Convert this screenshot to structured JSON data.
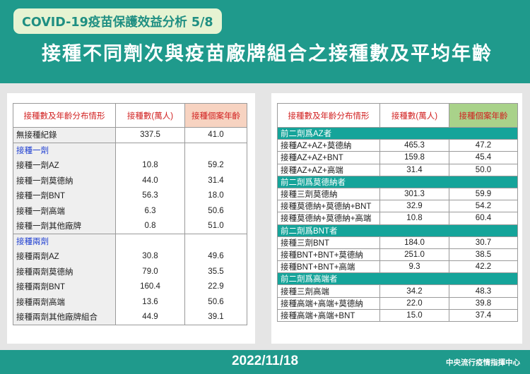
{
  "header": {
    "subtitle": "COVID-19疫苗保護效益分析 5/8",
    "title": "接種不同劑次與疫苗廠牌組合之接種數及平均年齡"
  },
  "left_table": {
    "headers": [
      "接種數及年齡分布情形",
      "接種數(萬人)",
      "接種個案年齡"
    ],
    "none_row": {
      "label": "無接種紀錄",
      "count": "337.5",
      "age": "41.0"
    },
    "section1": {
      "title": "接種一劑",
      "rows": [
        {
          "label": "接種一劑AZ",
          "count": "10.8",
          "age": "59.2"
        },
        {
          "label": "接種一劑莫德納",
          "count": "44.0",
          "age": "31.4"
        },
        {
          "label": "接種一劑BNT",
          "count": "56.3",
          "age": "18.0"
        },
        {
          "label": "接種一劑高端",
          "count": "6.3",
          "age": "50.6"
        },
        {
          "label": "接種一劑其他廠牌",
          "count": "0.8",
          "age": "51.0"
        }
      ]
    },
    "section2": {
      "title": "接種兩劑",
      "rows": [
        {
          "label": "接種兩劑AZ",
          "count": "30.8",
          "age": "49.6"
        },
        {
          "label": "接種兩劑莫德納",
          "count": "79.0",
          "age": "35.5"
        },
        {
          "label": "接種兩劑BNT",
          "count": "160.4",
          "age": "22.9"
        },
        {
          "label": "接種兩劑高端",
          "count": "13.6",
          "age": "50.6"
        },
        {
          "label": "接種兩劑其他廠牌組合",
          "count": "44.9",
          "age": "39.1"
        }
      ]
    }
  },
  "right_table": {
    "headers": [
      "接種數及年齡分布情形",
      "接種數(萬人)",
      "接種個案年齡"
    ],
    "groups": [
      {
        "title": "前二劑爲AZ者",
        "rows": [
          {
            "label": "接種AZ+AZ+莫德納",
            "count": "465.3",
            "age": "47.2"
          },
          {
            "label": "接種AZ+AZ+BNT",
            "count": "159.8",
            "age": "45.4"
          },
          {
            "label": "接種AZ+AZ+高端",
            "count": "31.4",
            "age": "50.0"
          }
        ]
      },
      {
        "title": "前二劑爲莫德納者",
        "rows": [
          {
            "label": "接種三劑莫德納",
            "count": "301.3",
            "age": "59.9"
          },
          {
            "label": "接種莫德納+莫德納+BNT",
            "count": "32.9",
            "age": "54.2"
          },
          {
            "label": "接種莫德納+莫德納+高端",
            "count": "10.8",
            "age": "60.4"
          }
        ]
      },
      {
        "title": "前二劑爲BNT者",
        "rows": [
          {
            "label": "接種三劑BNT",
            "count": "184.0",
            "age": "30.7"
          },
          {
            "label": "接種BNT+BNT+莫德納",
            "count": "251.0",
            "age": "38.5"
          },
          {
            "label": "接種BNT+BNT+高端",
            "count": "9.3",
            "age": "42.2"
          }
        ]
      },
      {
        "title": "前二劑爲高端者",
        "rows": [
          {
            "label": "接種三劑高端",
            "count": "34.2",
            "age": "48.3"
          },
          {
            "label": "接種高端+高端+莫德納",
            "count": "22.0",
            "age": "39.8"
          },
          {
            "label": "接種高端+高端+BNT",
            "count": "15.0",
            "age": "37.4"
          }
        ]
      }
    ]
  },
  "footer": {
    "date": "2022/11/18",
    "org": "中央流行疫情指揮中心"
  },
  "colors": {
    "banner": "#1f9a8c",
    "subtitle_bg": "#e6f3d2",
    "header_red": "#d11f1f",
    "age_header_left": "#f7d3c1",
    "age_header_right": "#a9d28a",
    "group_title_bg": "#15a49a",
    "section_blue": "#1f3fd1"
  }
}
